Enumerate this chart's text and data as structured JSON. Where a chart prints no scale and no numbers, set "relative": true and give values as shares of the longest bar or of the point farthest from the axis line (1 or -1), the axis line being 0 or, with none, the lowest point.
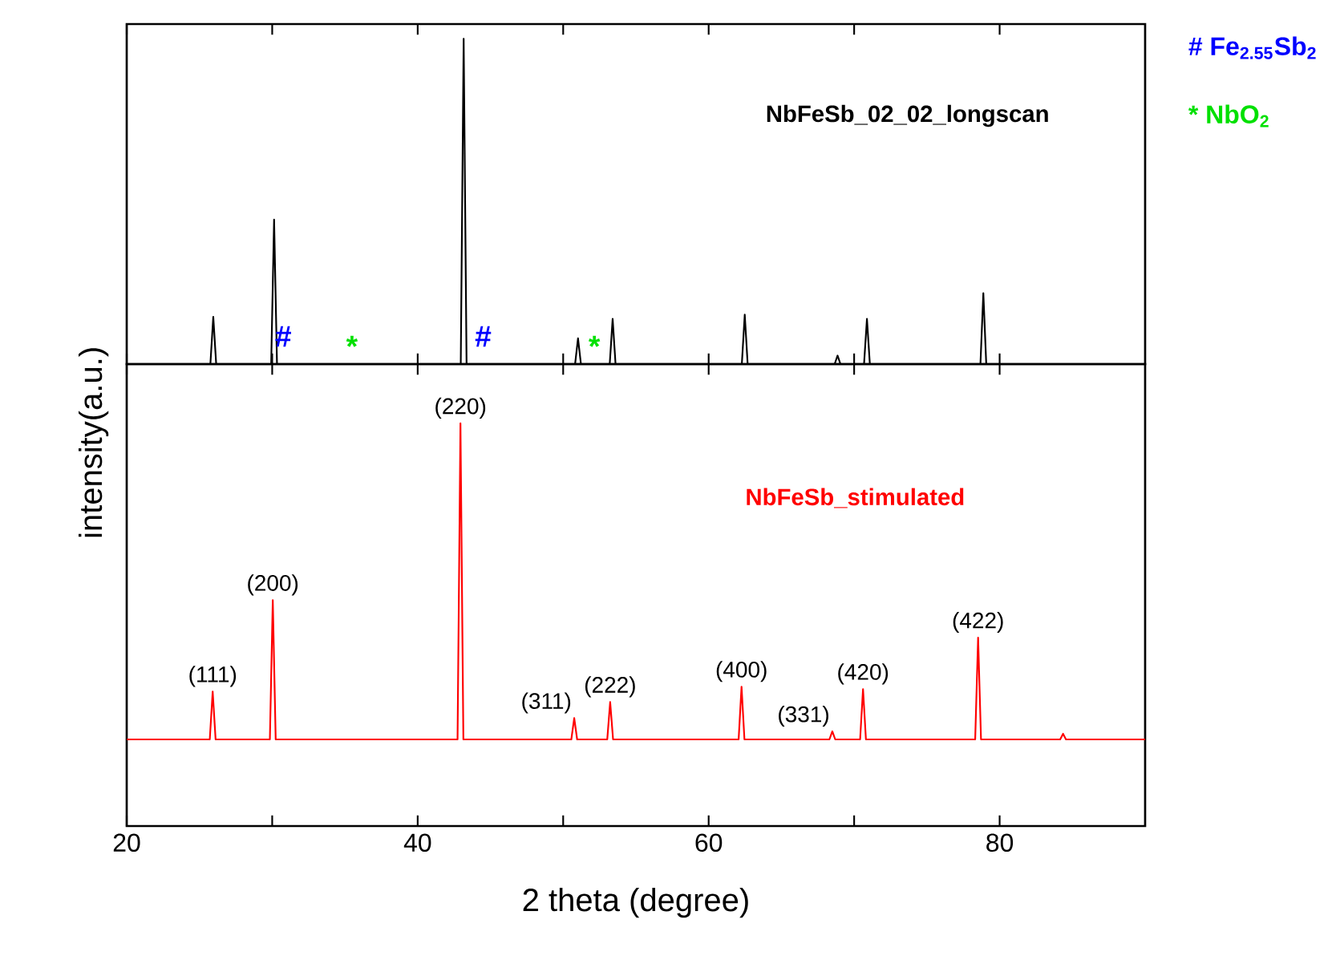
{
  "chart_data": [
    {
      "type": "line",
      "relative": true,
      "xlim": [
        20,
        90
      ],
      "xticks": [
        20,
        {
          "value": 30,
          "label": null
        },
        40,
        {
          "value": 50,
          "label": null
        },
        60,
        {
          "value": 70,
          "label": null
        },
        80
      ],
      "tick_labels": false,
      "legend": false,
      "grid": false,
      "series": [
        {
          "name": "NbFeSb_02_02_longscan",
          "color": "#000000",
          "x": [
            20,
            25.75,
            25.95,
            26.15,
            29.93,
            30.13,
            30.33,
            42.96,
            43.16,
            43.36,
            50.82,
            51.02,
            51.22,
            53.2,
            53.4,
            53.6,
            62.28,
            62.48,
            62.68,
            68.66,
            68.86,
            69.06,
            70.68,
            70.88,
            71.08,
            78.68,
            78.88,
            79.08,
            90
          ],
          "values": [
            0,
            0,
            0.145,
            0,
            0,
            0.444,
            0,
            0,
            1,
            0,
            0,
            0.079,
            0,
            0,
            0.139,
            0,
            0,
            0.152,
            0,
            0,
            0.026,
            0,
            0,
            0.139,
            0,
            0,
            0.218,
            0,
            0
          ]
        }
      ],
      "annotations": [
        "# Fe$_{2.55}$Sb$_{2}$",
        "* NbO$_{2}$",
        "#",
        "*",
        "#",
        "*"
      ]
    },
    {
      "type": "line",
      "relative": true,
      "xlim": [
        20,
        90
      ],
      "xticks": [
        20,
        {
          "value": 30,
          "label": null
        },
        40,
        {
          "value": 50,
          "label": null
        },
        60,
        {
          "value": 70,
          "label": null
        },
        80
      ],
      "tick_labels": "x",
      "legend": false,
      "grid": false,
      "xlabel": "2 theta (degree)",
      "ylabel": "intensity(a.u.)",
      "series": [
        {
          "name": "NbFeSb_stimulated",
          "color": "#ff0000",
          "x": [
            20,
            25.71,
            25.91,
            26.11,
            29.84,
            30.04,
            30.24,
            42.74,
            42.94,
            43.14,
            50.56,
            50.76,
            50.96,
            53.03,
            53.23,
            53.43,
            62.06,
            62.26,
            62.46,
            68.3,
            68.5,
            68.7,
            70.41,
            70.61,
            70.81,
            78.32,
            78.52,
            78.72,
            84.16,
            84.36,
            84.56,
            90
          ],
          "values": [
            0.215,
            0.215,
            0.334,
            0.215,
            0.215,
            0.561,
            0.215,
            0.215,
            1,
            0.215,
            0.215,
            0.268,
            0.215,
            0.215,
            0.308,
            0.215,
            0.215,
            0.346,
            0.215,
            0.215,
            0.235,
            0.215,
            0.215,
            0.34,
            0.215,
            0.215,
            0.468,
            0.215,
            0.215,
            0.229,
            0.215,
            0.215
          ]
        }
      ],
      "annotations": [
        {
          "text": "(111)",
          "x": 25.91,
          "y": 0.334
        },
        {
          "text": "(200)",
          "x": 30.04,
          "y": 0.561
        },
        {
          "text": "(220)",
          "x": 42.94,
          "y": 1
        },
        {
          "text": "(311)",
          "x": 50.76,
          "y": 0.268
        },
        {
          "text": "(222)",
          "x": 53.23,
          "y": 0.308
        },
        {
          "text": "(400)",
          "x": 62.26,
          "y": 0.346
        },
        {
          "text": "(331)",
          "x": 68.5,
          "y": 0.235
        },
        {
          "text": "(420)",
          "x": 70.61,
          "y": 0.34
        },
        {
          "text": "(422)",
          "x": 78.52,
          "y": 0.468
        }
      ]
    }
  ]
}
